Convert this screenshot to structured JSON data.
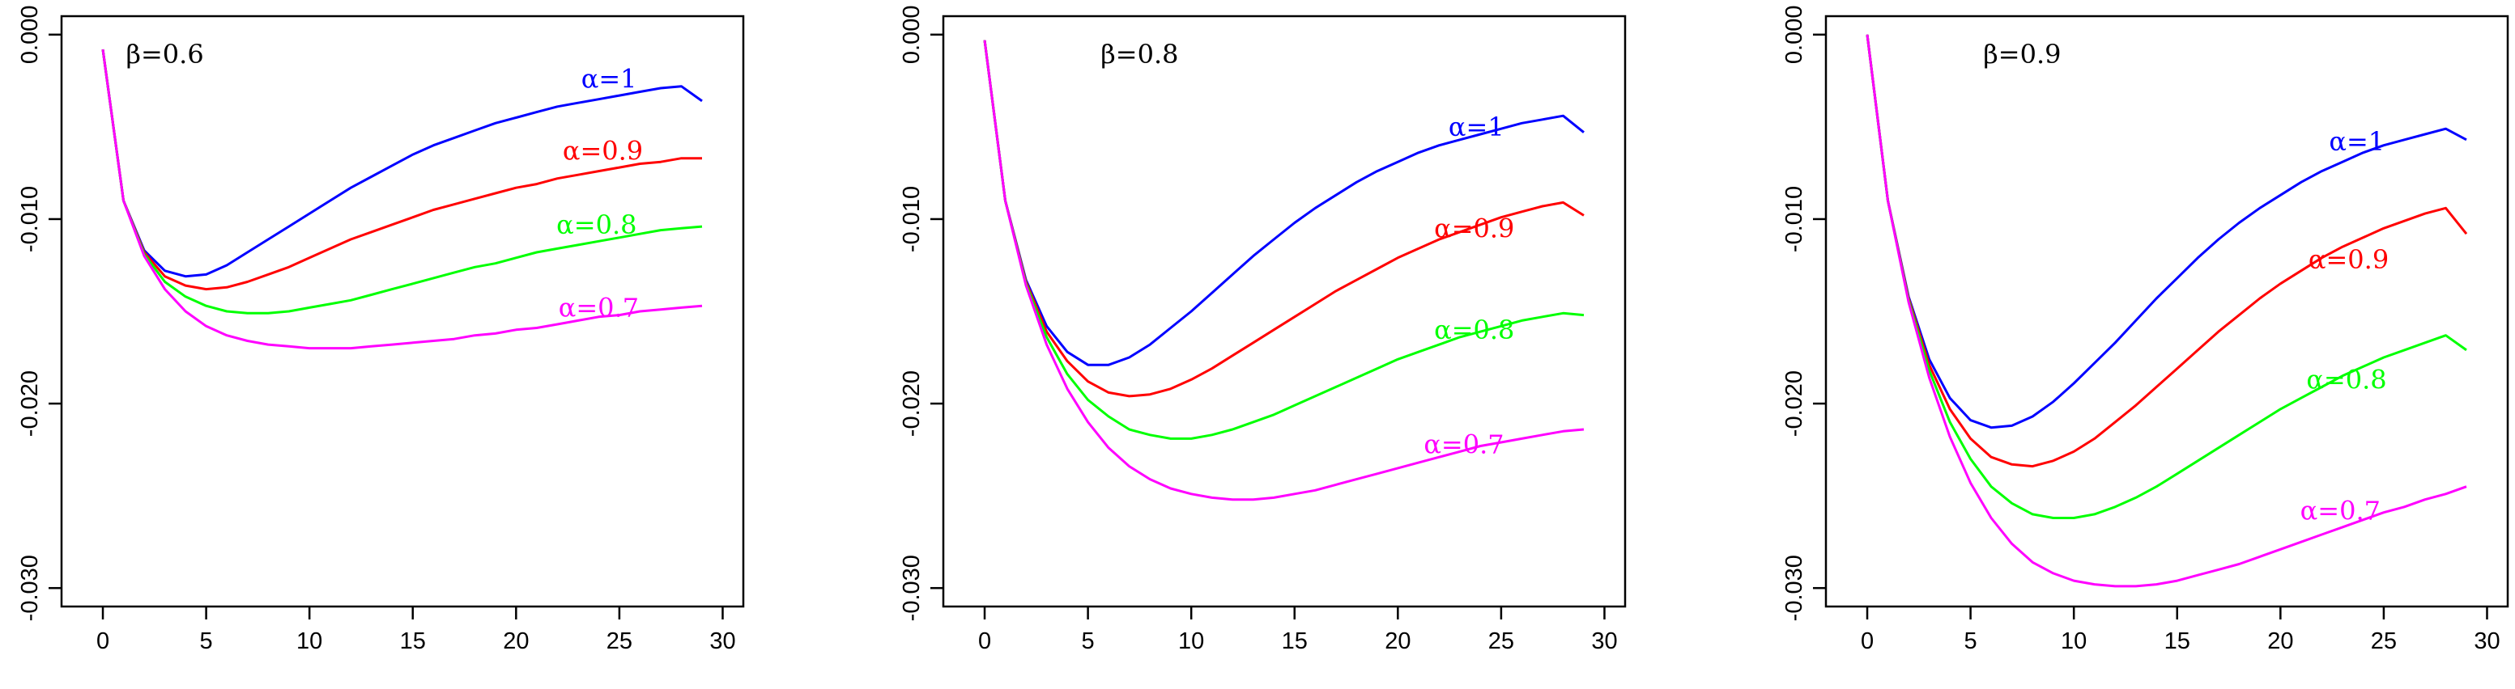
{
  "chart_data": [
    {
      "type": "line",
      "title": "β=0.6",
      "xlabel": "",
      "ylabel": "",
      "xlim": [
        -2,
        31
      ],
      "ylim": [
        -0.031,
        0.001
      ],
      "xticks": [
        0,
        5,
        10,
        15,
        20,
        25,
        30
      ],
      "xtick_labels": [
        "0",
        "5",
        "10",
        "15",
        "20",
        "25",
        "30"
      ],
      "yticks": [
        0,
        -0.01,
        -0.02,
        -0.03
      ],
      "ytick_labels": [
        "0.000",
        "-0.010",
        "-0.020",
        "-0.030"
      ],
      "x": [
        0,
        1,
        2,
        3,
        4,
        5,
        6,
        7,
        8,
        9,
        10,
        11,
        12,
        13,
        14,
        15,
        16,
        17,
        18,
        19,
        20,
        21,
        22,
        23,
        24,
        25,
        26,
        27,
        28,
        29
      ],
      "series": [
        {
          "name": "α=1",
          "label": "α=1",
          "color": "#0000ff",
          "label_at": [
            24.5,
            -0.0024
          ],
          "values": [
            -0.0008,
            -0.009,
            -0.0117,
            -0.0128,
            -0.0131,
            -0.013,
            -0.0125,
            -0.0118,
            -0.0111,
            -0.0104,
            -0.0097,
            -0.009,
            -0.0083,
            -0.0077,
            -0.0071,
            -0.0065,
            -0.006,
            -0.0056,
            -0.0052,
            -0.0048,
            -0.0045,
            -0.0042,
            -0.0039,
            -0.0037,
            -0.0035,
            -0.0033,
            -0.0031,
            -0.0029,
            -0.0028,
            -0.0036
          ]
        },
        {
          "name": "α=0.9",
          "label": "α=0.9",
          "color": "#ff0000",
          "label_at": [
            24.2,
            -0.0063
          ],
          "values": [
            -0.0008,
            -0.009,
            -0.0118,
            -0.0131,
            -0.0136,
            -0.0138,
            -0.0137,
            -0.0134,
            -0.013,
            -0.0126,
            -0.0121,
            -0.0116,
            -0.0111,
            -0.0107,
            -0.0103,
            -0.0099,
            -0.0095,
            -0.0092,
            -0.0089,
            -0.0086,
            -0.0083,
            -0.0081,
            -0.0078,
            -0.0076,
            -0.0074,
            -0.0072,
            -0.007,
            -0.0069,
            -0.0067,
            -0.0067
          ]
        },
        {
          "name": "α=0.8",
          "label": "α=0.8",
          "color": "#00ff00",
          "label_at": [
            23.9,
            -0.0103
          ],
          "values": [
            -0.0008,
            -0.009,
            -0.0119,
            -0.0134,
            -0.0142,
            -0.0147,
            -0.015,
            -0.0151,
            -0.0151,
            -0.015,
            -0.0148,
            -0.0146,
            -0.0144,
            -0.0141,
            -0.0138,
            -0.0135,
            -0.0132,
            -0.0129,
            -0.0126,
            -0.0124,
            -0.0121,
            -0.0118,
            -0.0116,
            -0.0114,
            -0.0112,
            -0.011,
            -0.0108,
            -0.0106,
            -0.0105,
            -0.0104
          ]
        },
        {
          "name": "α=0.7",
          "label": "α=0.7",
          "color": "#ff00ff",
          "label_at": [
            24.0,
            -0.0148
          ],
          "values": [
            -0.0008,
            -0.009,
            -0.012,
            -0.0138,
            -0.015,
            -0.0158,
            -0.0163,
            -0.0166,
            -0.0168,
            -0.0169,
            -0.017,
            -0.017,
            -0.017,
            -0.0169,
            -0.0168,
            -0.0167,
            -0.0166,
            -0.0165,
            -0.0163,
            -0.0162,
            -0.016,
            -0.0159,
            -0.0157,
            -0.0155,
            -0.0153,
            -0.0152,
            -0.015,
            -0.0149,
            -0.0148,
            -0.0147
          ]
        }
      ]
    },
    {
      "type": "line",
      "title": "β=0.8",
      "xlabel": "",
      "ylabel": "",
      "xlim": [
        -2,
        31
      ],
      "ylim": [
        -0.031,
        0.001
      ],
      "xticks": [
        0,
        5,
        10,
        15,
        20,
        25,
        30
      ],
      "xtick_labels": [
        "0",
        "5",
        "10",
        "15",
        "20",
        "25",
        "30"
      ],
      "yticks": [
        0,
        -0.01,
        -0.02,
        -0.03
      ],
      "ytick_labels": [
        "0.000",
        "-0.010",
        "-0.020",
        "-0.030"
      ],
      "x": [
        0,
        1,
        2,
        3,
        4,
        5,
        6,
        7,
        8,
        9,
        10,
        11,
        12,
        13,
        14,
        15,
        16,
        17,
        18,
        19,
        20,
        21,
        22,
        23,
        24,
        25,
        26,
        27,
        28,
        29
      ],
      "series": [
        {
          "name": "α=1",
          "label": "α=1",
          "color": "#0000ff",
          "label_at": [
            23.8,
            -0.005
          ],
          "values": [
            -0.0003,
            -0.009,
            -0.0133,
            -0.0158,
            -0.0172,
            -0.0179,
            -0.0179,
            -0.0175,
            -0.0168,
            -0.0159,
            -0.015,
            -0.014,
            -0.013,
            -0.012,
            -0.0111,
            -0.0102,
            -0.0094,
            -0.0087,
            -0.008,
            -0.0074,
            -0.0069,
            -0.0064,
            -0.006,
            -0.0057,
            -0.0054,
            -0.0051,
            -0.0048,
            -0.0046,
            -0.0044,
            -0.0053
          ]
        },
        {
          "name": "α=0.9",
          "label": "α=0.9",
          "color": "#ff0000",
          "label_at": [
            23.7,
            -0.0105
          ],
          "values": [
            -0.0003,
            -0.009,
            -0.0134,
            -0.0161,
            -0.0177,
            -0.0188,
            -0.0194,
            -0.0196,
            -0.0195,
            -0.0192,
            -0.0187,
            -0.0181,
            -0.0174,
            -0.0167,
            -0.016,
            -0.0153,
            -0.0146,
            -0.0139,
            -0.0133,
            -0.0127,
            -0.0121,
            -0.0116,
            -0.0111,
            -0.0107,
            -0.0103,
            -0.0099,
            -0.0096,
            -0.0093,
            -0.0091,
            -0.0098
          ]
        },
        {
          "name": "α=0.8",
          "label": "α=0.8",
          "color": "#00ff00",
          "label_at": [
            23.7,
            -0.016
          ],
          "values": [
            -0.0003,
            -0.009,
            -0.0135,
            -0.0164,
            -0.0184,
            -0.0198,
            -0.0207,
            -0.0214,
            -0.0217,
            -0.0219,
            -0.0219,
            -0.0217,
            -0.0214,
            -0.021,
            -0.0206,
            -0.0201,
            -0.0196,
            -0.0191,
            -0.0186,
            -0.0181,
            -0.0176,
            -0.0172,
            -0.0168,
            -0.0164,
            -0.0161,
            -0.0158,
            -0.0155,
            -0.0153,
            -0.0151,
            -0.0152
          ]
        },
        {
          "name": "α=0.7",
          "label": "α=0.7",
          "color": "#ff00ff",
          "label_at": [
            23.2,
            -0.0222
          ],
          "values": [
            -0.0003,
            -0.009,
            -0.0136,
            -0.0168,
            -0.0192,
            -0.021,
            -0.0224,
            -0.0234,
            -0.0241,
            -0.0246,
            -0.0249,
            -0.0251,
            -0.0252,
            -0.0252,
            -0.0251,
            -0.0249,
            -0.0247,
            -0.0244,
            -0.0241,
            -0.0238,
            -0.0235,
            -0.0232,
            -0.0229,
            -0.0226,
            -0.0223,
            -0.0221,
            -0.0219,
            -0.0217,
            -0.0215,
            -0.0214
          ]
        }
      ]
    },
    {
      "type": "line",
      "title": "β=0.9",
      "xlabel": "",
      "ylabel": "",
      "xlim": [
        -2,
        31
      ],
      "ylim": [
        -0.031,
        0.001
      ],
      "xticks": [
        0,
        5,
        10,
        15,
        20,
        25,
        30
      ],
      "xtick_labels": [
        "0",
        "5",
        "10",
        "15",
        "20",
        "25",
        "30"
      ],
      "yticks": [
        0,
        -0.01,
        -0.02,
        -0.03
      ],
      "ytick_labels": [
        "0.000",
        "-0.010",
        "-0.020",
        "-0.030"
      ],
      "x": [
        0,
        1,
        2,
        3,
        4,
        5,
        6,
        7,
        8,
        9,
        10,
        11,
        12,
        13,
        14,
        15,
        16,
        17,
        18,
        19,
        20,
        21,
        22,
        23,
        24,
        25,
        26,
        27,
        28,
        29
      ],
      "series": [
        {
          "name": "α=1",
          "label": "α=1",
          "color": "#0000ff",
          "label_at": [
            23.7,
            -0.0058
          ],
          "values": [
            -0.0,
            -0.009,
            -0.0142,
            -0.0176,
            -0.0197,
            -0.0209,
            -0.0213,
            -0.0212,
            -0.0207,
            -0.0199,
            -0.0189,
            -0.0178,
            -0.0167,
            -0.0155,
            -0.0143,
            -0.0132,
            -0.0121,
            -0.0111,
            -0.0102,
            -0.0094,
            -0.0087,
            -0.008,
            -0.0074,
            -0.0069,
            -0.0064,
            -0.006,
            -0.0057,
            -0.0054,
            -0.0051,
            -0.0057
          ]
        },
        {
          "name": "α=0.9",
          "label": "α=0.9",
          "color": "#ff0000",
          "label_at": [
            23.3,
            -0.0122
          ],
          "values": [
            -0.0,
            -0.009,
            -0.0143,
            -0.0179,
            -0.0203,
            -0.0219,
            -0.0229,
            -0.0233,
            -0.0234,
            -0.0231,
            -0.0226,
            -0.0219,
            -0.021,
            -0.0201,
            -0.0191,
            -0.0181,
            -0.0171,
            -0.0161,
            -0.0152,
            -0.0143,
            -0.0135,
            -0.0128,
            -0.0121,
            -0.0115,
            -0.011,
            -0.0105,
            -0.0101,
            -0.0097,
            -0.0094,
            -0.0108
          ]
        },
        {
          "name": "α=0.8",
          "label": "α=0.8",
          "color": "#00ff00",
          "label_at": [
            23.2,
            -0.0187
          ],
          "values": [
            -0.0,
            -0.009,
            -0.0144,
            -0.0182,
            -0.021,
            -0.023,
            -0.0245,
            -0.0254,
            -0.026,
            -0.0262,
            -0.0262,
            -0.026,
            -0.0256,
            -0.0251,
            -0.0245,
            -0.0238,
            -0.0231,
            -0.0224,
            -0.0217,
            -0.021,
            -0.0203,
            -0.0197,
            -0.0191,
            -0.0185,
            -0.018,
            -0.0175,
            -0.0171,
            -0.0167,
            -0.0163,
            -0.0171
          ]
        },
        {
          "name": "α=0.7",
          "label": "α=0.7",
          "color": "#ff00ff",
          "label_at": [
            22.9,
            -0.0258
          ],
          "values": [
            -0.0,
            -0.009,
            -0.0145,
            -0.0186,
            -0.0218,
            -0.0243,
            -0.0262,
            -0.0276,
            -0.0286,
            -0.0292,
            -0.0296,
            -0.0298,
            -0.0299,
            -0.0299,
            -0.0298,
            -0.0296,
            -0.0293,
            -0.029,
            -0.0287,
            -0.0283,
            -0.0279,
            -0.0275,
            -0.0271,
            -0.0267,
            -0.0263,
            -0.0259,
            -0.0256,
            -0.0252,
            -0.0249,
            -0.0245
          ]
        }
      ]
    }
  ]
}
